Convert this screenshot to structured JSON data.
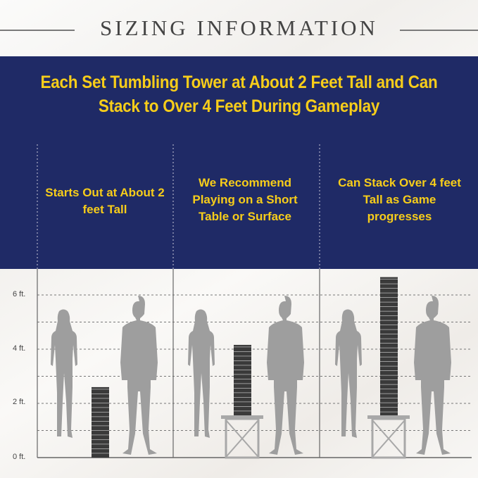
{
  "title": "SIZING INFORMATION",
  "headline": "Each Set Tumbling Tower at About 2 Feet Tall and Can Stack to Over 4 Feet During Gameplay",
  "columns": [
    {
      "text": "Starts Out at About 2 feet Tall",
      "tower_height_ft": 2.6,
      "on_table": false
    },
    {
      "text": "We Recommend Playing on a Short Table or Surface",
      "tower_height_ft": 2.6,
      "on_table": true
    },
    {
      "text": "Can Stack Over 4 feet Tall as Game progresses",
      "tower_height_ft": 5.1,
      "on_table": true
    }
  ],
  "y_axis": {
    "labels": [
      "6 ft.",
      "4 ft.",
      "2 ft.",
      "0 ft."
    ]
  },
  "colors": {
    "band": "#1f2a66",
    "headline": "#f7cd1a",
    "silhouette": "#9e9e9e",
    "tower": "#3a3a3a"
  }
}
